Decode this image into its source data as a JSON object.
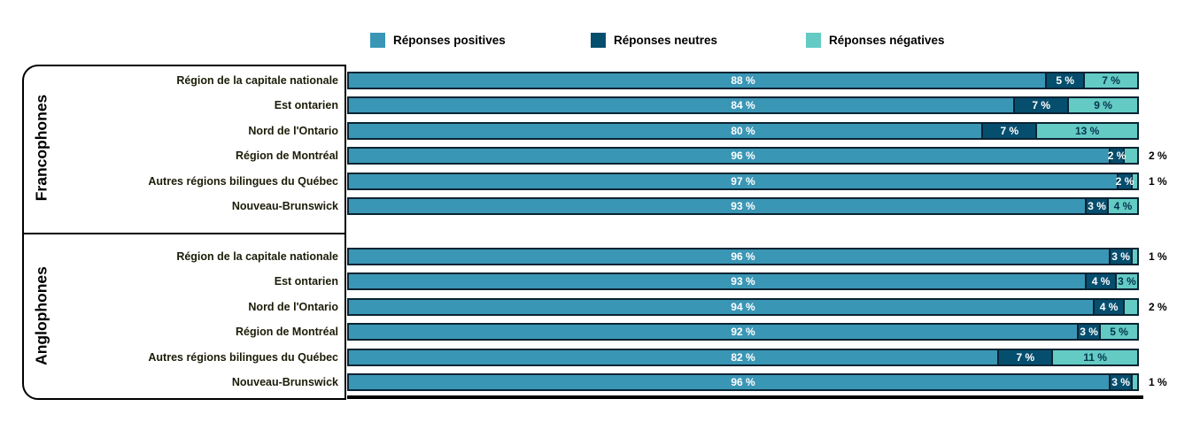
{
  "chart_data": {
    "type": "bar",
    "stacked": true,
    "orientation": "horizontal",
    "unit": "%",
    "value_suffix": " %",
    "xlim": [
      0,
      100
    ],
    "legend_position": "top",
    "legend_labels": [
      "Réponses positives",
      "Réponses neutres",
      "Réponses négatives"
    ],
    "series_keys": [
      "positive",
      "neutral",
      "negative"
    ],
    "colors": {
      "positive": "#3a96b5",
      "neutral": "#064e6e",
      "negative": "#63cbc4"
    },
    "groups": [
      {
        "label": "Francophones",
        "rows": [
          {
            "label": "Région de la capitale nationale",
            "positive": 88,
            "neutral": 5,
            "negative": 7
          },
          {
            "label": "Est ontarien",
            "positive": 84,
            "neutral": 7,
            "negative": 9
          },
          {
            "label": "Nord de l'Ontario",
            "positive": 80,
            "neutral": 7,
            "negative": 13
          },
          {
            "label": "Région de Montréal",
            "positive": 96,
            "neutral": 2,
            "negative": 2
          },
          {
            "label": "Autres régions bilingues du Québec",
            "positive": 97,
            "neutral": 2,
            "negative": 1
          },
          {
            "label": "Nouveau-Brunswick",
            "positive": 93,
            "neutral": 3,
            "negative": 4
          }
        ]
      },
      {
        "label": "Anglophones",
        "rows": [
          {
            "label": "Région de la capitale nationale",
            "positive": 96,
            "neutral": 3,
            "negative": 1
          },
          {
            "label": "Est ontarien",
            "positive": 93,
            "neutral": 4,
            "negative": 3
          },
          {
            "label": "Nord de l'Ontario",
            "positive": 94,
            "neutral": 4,
            "negative": 2
          },
          {
            "label": "Région de Montréal",
            "positive": 92,
            "neutral": 3,
            "negative": 5
          },
          {
            "label": "Autres régions bilingues du Québec",
            "positive": 82,
            "neutral": 7,
            "negative": 11
          },
          {
            "label": "Nouveau-Brunswick",
            "positive": 96,
            "neutral": 3,
            "negative": 1
          }
        ]
      }
    ]
  }
}
